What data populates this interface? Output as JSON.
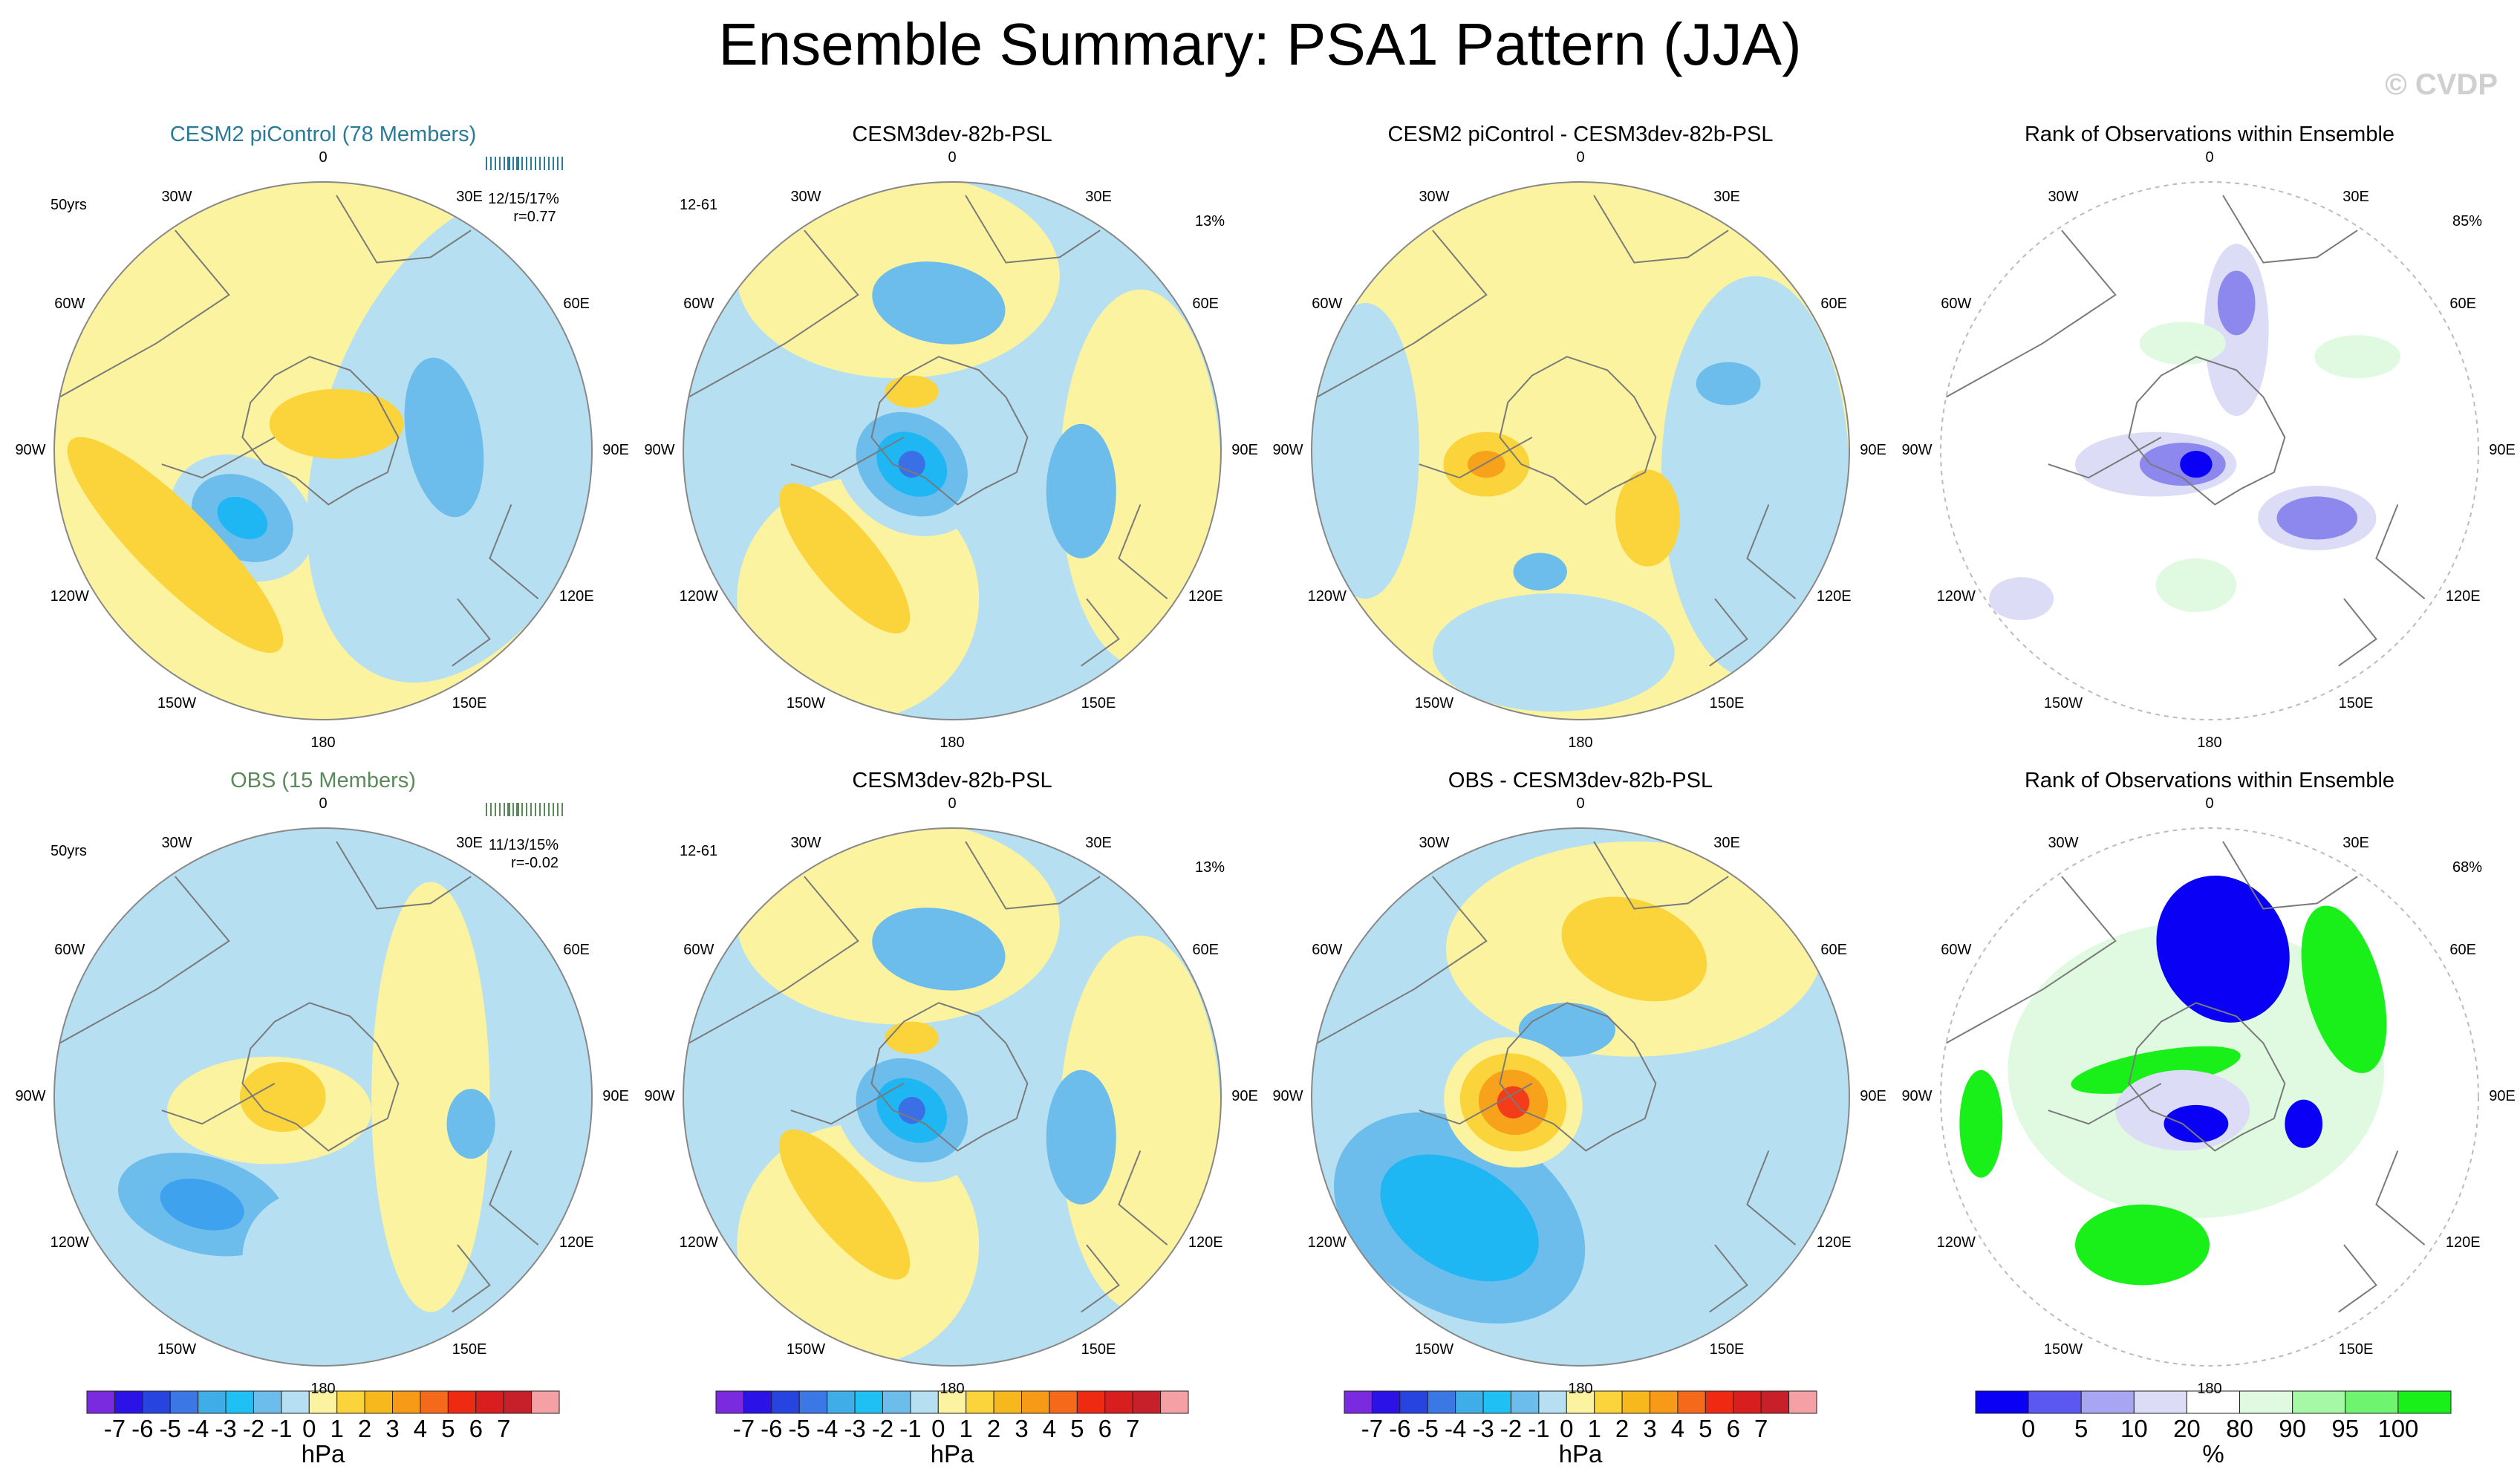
{
  "title": "Ensemble Summary: PSA1 Pattern (JJA)",
  "credit": "© CVDP",
  "colors": {
    "lightblue": "#b7dff2",
    "blue": "#6cbcec",
    "mid": "#3fa2ee",
    "deep": "#1fb6f4",
    "core": "#3a6fe6",
    "lightyellow": "#fbf3a0",
    "gold": "#fbd33b",
    "orange": "#f7a21a",
    "red": "#f23c1a",
    "coast": "#7a7a7a",
    "rankblue": "#0a00f5",
    "rankmid": "#8c88ee",
    "ranklight": "#dcdcf7",
    "rankgreen": "#19f019",
    "rankgreenlight": "#dffae0"
  },
  "lon_labels": [
    "0",
    "30E",
    "60E",
    "90E",
    "120E",
    "150E",
    "180",
    "150W",
    "120W",
    "90W",
    "60W",
    "30W"
  ],
  "panels": [
    {
      "id": "p11",
      "title": "CESM2 piControl (78 Members)",
      "title_color": "#2a7a9a",
      "corner": "50yrs",
      "stat1": "12/15/17%",
      "stat2": "r=0.77",
      "type": "anom",
      "variant": "a"
    },
    {
      "id": "p12",
      "title": "CESM3dev-82b-PSL",
      "corner": "12-61",
      "pct": "13%",
      "type": "anom",
      "variant": "b"
    },
    {
      "id": "p13",
      "title": "CESM2 piControl - CESM3dev-82b-PSL",
      "type": "anom",
      "variant": "c"
    },
    {
      "id": "p14",
      "title": "Rank of Observations within Ensemble",
      "pct": "85%",
      "type": "rank",
      "variant": "r1"
    },
    {
      "id": "p21",
      "title": "OBS (15 Members)",
      "title_color": "#5a8a5a",
      "corner": "50yrs",
      "stat1": "11/13/15%",
      "stat2": "r=-0.02",
      "type": "anom",
      "variant": "d"
    },
    {
      "id": "p22",
      "title": "CESM3dev-82b-PSL",
      "corner": "12-61",
      "pct": "13%",
      "type": "anom",
      "variant": "b"
    },
    {
      "id": "p23",
      "title": "OBS - CESM3dev-82b-PSL",
      "type": "anom",
      "variant": "e"
    },
    {
      "id": "p24",
      "title": "Rank of Observations within Ensemble",
      "pct": "68%",
      "type": "rank",
      "variant": "r2"
    }
  ],
  "colorbar_anom": {
    "colors": [
      "#7a2be0",
      "#2b12e6",
      "#2844e0",
      "#3b78e6",
      "#3faee8",
      "#1fc0f4",
      "#6cbcec",
      "#b7dff2",
      "#fbf3a0",
      "#fbd33b",
      "#f7b81e",
      "#f79a18",
      "#f56a1a",
      "#ee2a12",
      "#d81e1e",
      "#c8202a",
      "#f4a0a4"
    ],
    "labels": [
      "-7",
      "-6",
      "-5",
      "-4",
      "-3",
      "-2",
      "-1",
      "0",
      "1",
      "2",
      "3",
      "4",
      "5",
      "6",
      "7"
    ],
    "unit": "hPa"
  },
  "colorbar_rank": {
    "colors": [
      "#0a00f5",
      "#5a58f0",
      "#a8a6f2",
      "#dcdcf7",
      "#ffffff",
      "#dffae0",
      "#a6f7a6",
      "#6ef46e",
      "#19f019"
    ],
    "labels": [
      "0",
      "5",
      "10",
      "20",
      "80",
      "90",
      "95",
      "100"
    ],
    "unit": "%"
  }
}
